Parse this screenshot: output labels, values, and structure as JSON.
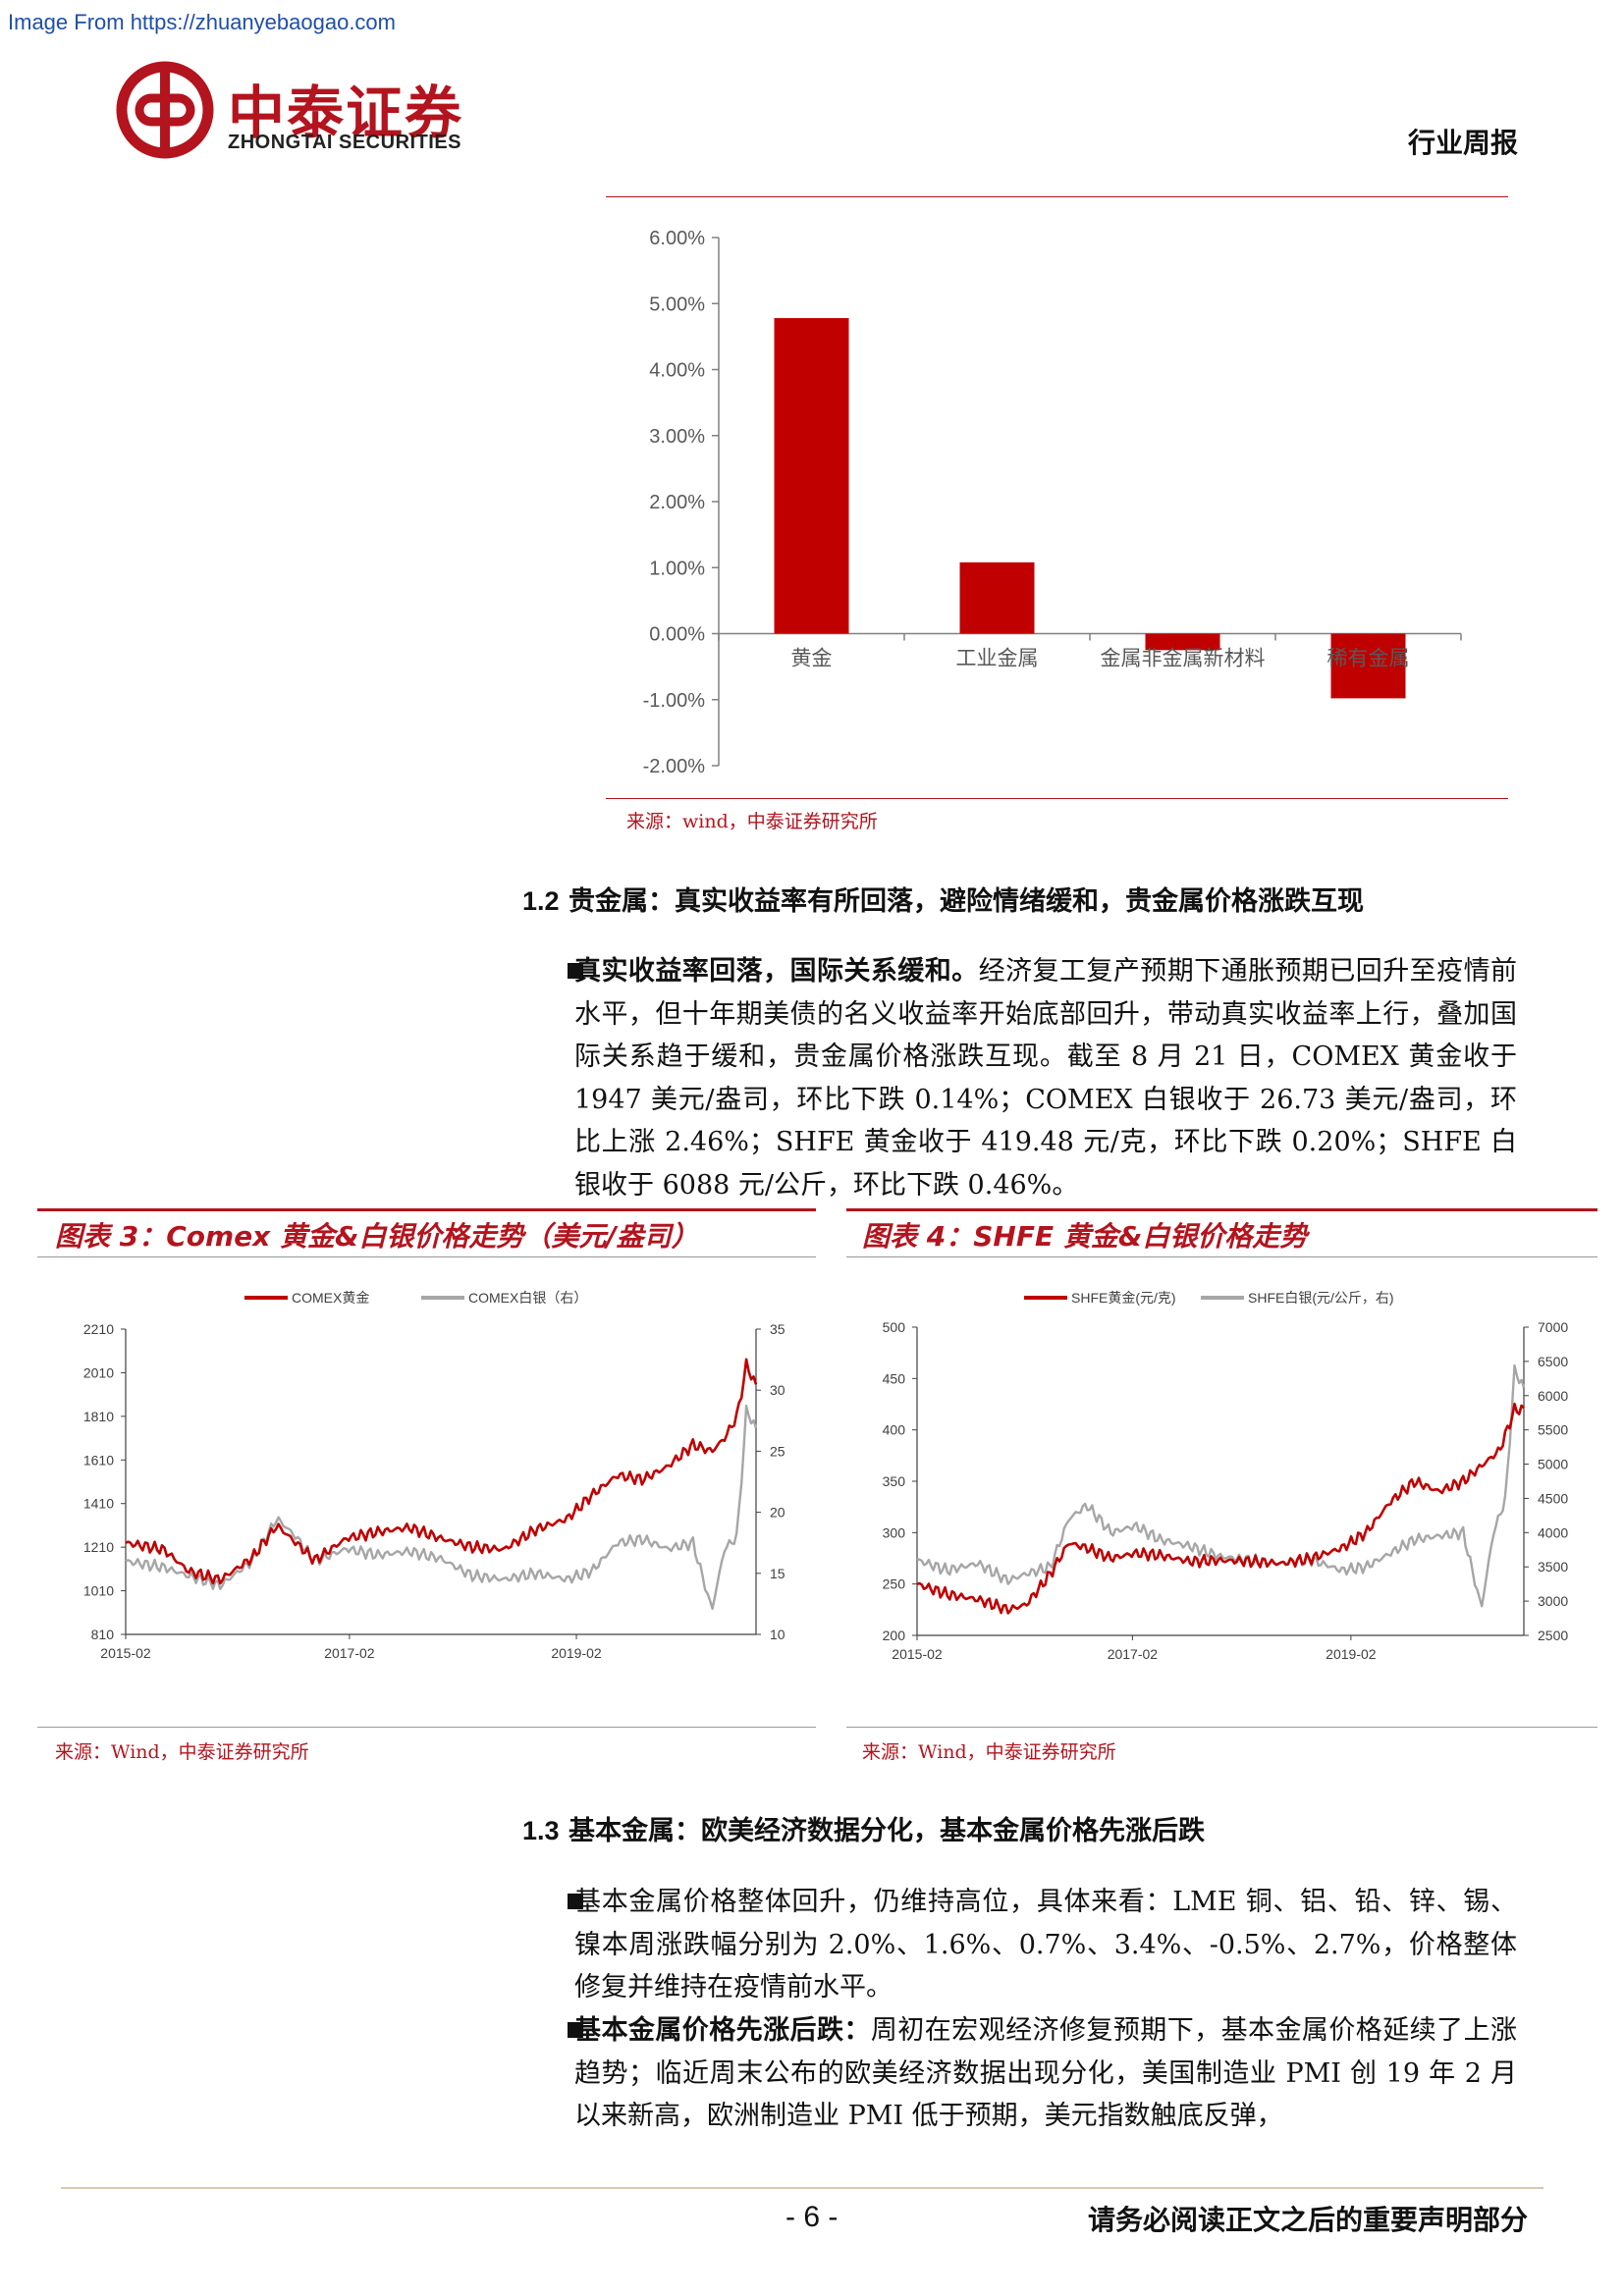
{
  "watermark": "Image From https://zhuanyebaogao.com",
  "header": {
    "logo_cn": "中泰证券",
    "logo_en": "ZHONGTAI SECURITIES",
    "report_type": "行业周报"
  },
  "bar_section": {
    "source": "来源：wind，中泰证券研究所",
    "chart_data": {
      "type": "bar",
      "categories": [
        "黄金",
        "工业金属",
        "金属非金属新材料",
        "稀有金属"
      ],
      "values": [
        4.78,
        1.08,
        -0.25,
        -0.98
      ],
      "ylim": [
        -2.0,
        6.0
      ],
      "yticks": [
        "6.00%",
        "5.00%",
        "4.00%",
        "3.00%",
        "2.00%",
        "1.00%",
        "0.00%",
        "-1.00%",
        "-2.00%"
      ],
      "colors": {
        "bar": "#c00000"
      }
    }
  },
  "section_1_2": {
    "number": "1.2",
    "title": "贵金属：真实收益率有所回落，避险情绪缓和，贵金属价格涨跌互现",
    "bullet_bold": "真实收益率回落，国际关系缓和。",
    "bullet_text": "经济复工复产预期下通胀预期已回升至疫情前水平，但十年期美债的名义收益率开始底部回升，带动真实收益率上行，叠加国际关系趋于缓和，贵金属价格涨跌互现。截至 8 月 21 日，COMEX 黄金收于 1947 美元/盎司，环比下跌 0.14%；COMEX 白银收于 26.73 美元/盎司，环比上涨 2.46%；SHFE 黄金收于 419.48 元/克，环比下跌 0.20%；SHFE 白银收于 6088 元/公斤，环比下跌 0.46%。"
  },
  "figure3": {
    "title": "图表 3：Comex 黄金&白银价格走势（美元/盎司）",
    "source": "来源：Wind，中泰证券研究所",
    "chart_data": {
      "type": "line",
      "series": [
        {
          "name": "COMEX黄金",
          "axis": "left",
          "color": "#c00000",
          "points": [
            [
              0,
              1230
            ],
            [
              0.06,
              1200
            ],
            [
              0.1,
              1100
            ],
            [
              0.15,
              1060
            ],
            [
              0.2,
              1160
            ],
            [
              0.24,
              1310
            ],
            [
              0.27,
              1230
            ],
            [
              0.3,
              1150
            ],
            [
              0.35,
              1250
            ],
            [
              0.4,
              1280
            ],
            [
              0.45,
              1300
            ],
            [
              0.5,
              1250
            ],
            [
              0.55,
              1210
            ],
            [
              0.6,
              1200
            ],
            [
              0.65,
              1290
            ],
            [
              0.7,
              1340
            ],
            [
              0.74,
              1450
            ],
            [
              0.78,
              1540
            ],
            [
              0.82,
              1520
            ],
            [
              0.86,
              1580
            ],
            [
              0.9,
              1680
            ],
            [
              0.93,
              1650
            ],
            [
              0.95,
              1710
            ],
            [
              0.97,
              1810
            ],
            [
              0.985,
              2050
            ],
            [
              1.0,
              1947
            ]
          ]
        },
        {
          "name": "COMEX白银（右）",
          "axis": "right",
          "color": "#a6a6a6",
          "points": [
            [
              0,
              16.0
            ],
            [
              0.06,
              15.5
            ],
            [
              0.1,
              14.8
            ],
            [
              0.15,
              14.0
            ],
            [
              0.2,
              16.0
            ],
            [
              0.24,
              19.5
            ],
            [
              0.27,
              18.0
            ],
            [
              0.3,
              16.0
            ],
            [
              0.35,
              17.0
            ],
            [
              0.4,
              16.5
            ],
            [
              0.45,
              16.8
            ],
            [
              0.5,
              16.2
            ],
            [
              0.55,
              14.8
            ],
            [
              0.6,
              14.5
            ],
            [
              0.65,
              15.0
            ],
            [
              0.7,
              14.5
            ],
            [
              0.74,
              15.2
            ],
            [
              0.78,
              17.5
            ],
            [
              0.82,
              17.8
            ],
            [
              0.86,
              17.0
            ],
            [
              0.9,
              17.5
            ],
            [
              0.93,
              12.0
            ],
            [
              0.95,
              17.0
            ],
            [
              0.97,
              18.0
            ],
            [
              0.985,
              28.5
            ],
            [
              1.0,
              26.73
            ]
          ]
        }
      ],
      "left_ticks": [
        "2210",
        "2010",
        "1810",
        "1610",
        "1410",
        "1210",
        "1010",
        "810"
      ],
      "left_range": [
        810,
        2210
      ],
      "right_ticks": [
        "35",
        "30",
        "25",
        "20",
        "15",
        "10"
      ],
      "right_range": [
        10,
        35
      ],
      "x_ticks": [
        {
          "label": "2015-02",
          "pos": 0.0
        },
        {
          "label": "2017-02",
          "pos": 0.355
        },
        {
          "label": "2019-02",
          "pos": 0.715
        }
      ]
    }
  },
  "figure4": {
    "title": "图表 4：SHFE 黄金&白银价格走势",
    "source": "来源：Wind，中泰证券研究所",
    "chart_data": {
      "type": "line",
      "series": [
        {
          "name": "SHFE黄金(元/克)",
          "axis": "left",
          "color": "#c00000",
          "points": [
            [
              0,
              250
            ],
            [
              0.05,
              240
            ],
            [
              0.1,
              235
            ],
            [
              0.15,
              225
            ],
            [
              0.18,
              230
            ],
            [
              0.22,
              260
            ],
            [
              0.25,
              290
            ],
            [
              0.28,
              285
            ],
            [
              0.32,
              275
            ],
            [
              0.36,
              280
            ],
            [
              0.4,
              278
            ],
            [
              0.45,
              272
            ],
            [
              0.5,
              273
            ],
            [
              0.55,
              272
            ],
            [
              0.6,
              270
            ],
            [
              0.65,
              275
            ],
            [
              0.7,
              285
            ],
            [
              0.74,
              300
            ],
            [
              0.78,
              330
            ],
            [
              0.82,
              350
            ],
            [
              0.86,
              340
            ],
            [
              0.9,
              350
            ],
            [
              0.93,
              365
            ],
            [
              0.96,
              380
            ],
            [
              0.985,
              420
            ],
            [
              1.0,
              419.48
            ]
          ]
        },
        {
          "name": "SHFE白银(元/公斤，右)",
          "axis": "right",
          "color": "#a6a6a6",
          "points": [
            [
              0,
              3600
            ],
            [
              0.05,
              3450
            ],
            [
              0.1,
              3550
            ],
            [
              0.15,
              3300
            ],
            [
              0.18,
              3400
            ],
            [
              0.22,
              3500
            ],
            [
              0.25,
              4200
            ],
            [
              0.28,
              4400
            ],
            [
              0.32,
              4000
            ],
            [
              0.36,
              4100
            ],
            [
              0.4,
              3900
            ],
            [
              0.45,
              3800
            ],
            [
              0.5,
              3650
            ],
            [
              0.55,
              3600
            ],
            [
              0.6,
              3550
            ],
            [
              0.65,
              3600
            ],
            [
              0.7,
              3450
            ],
            [
              0.74,
              3500
            ],
            [
              0.78,
              3700
            ],
            [
              0.82,
              3900
            ],
            [
              0.86,
              3950
            ],
            [
              0.9,
              4000
            ],
            [
              0.93,
              2900
            ],
            [
              0.95,
              4000
            ],
            [
              0.97,
              4500
            ],
            [
              0.985,
              6400
            ],
            [
              1.0,
              6088
            ]
          ]
        }
      ],
      "left_ticks": [
        "500",
        "450",
        "400",
        "350",
        "300",
        "250",
        "200"
      ],
      "left_range": [
        200,
        500
      ],
      "right_ticks": [
        "7000",
        "6500",
        "6000",
        "5500",
        "5000",
        "4500",
        "4000",
        "3500",
        "3000",
        "2500"
      ],
      "right_range": [
        2500,
        7000
      ],
      "x_ticks": [
        {
          "label": "2015-02",
          "pos": 0.0
        },
        {
          "label": "2017-02",
          "pos": 0.355
        },
        {
          "label": "2019-02",
          "pos": 0.715
        }
      ]
    }
  },
  "section_1_3": {
    "number": "1.3",
    "title": "基本金属：欧美经济数据分化，基本金属价格先涨后跌",
    "bullet1_text": "基本金属价格整体回升，仍维持高位，具体来看：LME 铜、铝、铅、锌、锡、镍本周涨跌幅分别为 2.0%、1.6%、0.7%、3.4%、-0.5%、2.7%，价格整体修复并维持在疫情前水平。",
    "bullet2_bold": "基本金属价格先涨后跌：",
    "bullet2_text": "周初在宏观经济修复预期下，基本金属价格延续了上涨趋势；临近周末公布的欧美经济数据出现分化，美国制造业 PMI 创 19 年 2 月以来新高，欧洲制造业 PMI 低于预期，美元指数触底反弹，"
  },
  "footer": {
    "page": "- 6 -",
    "note": "请务必阅读正文之后的重要声明部分"
  }
}
